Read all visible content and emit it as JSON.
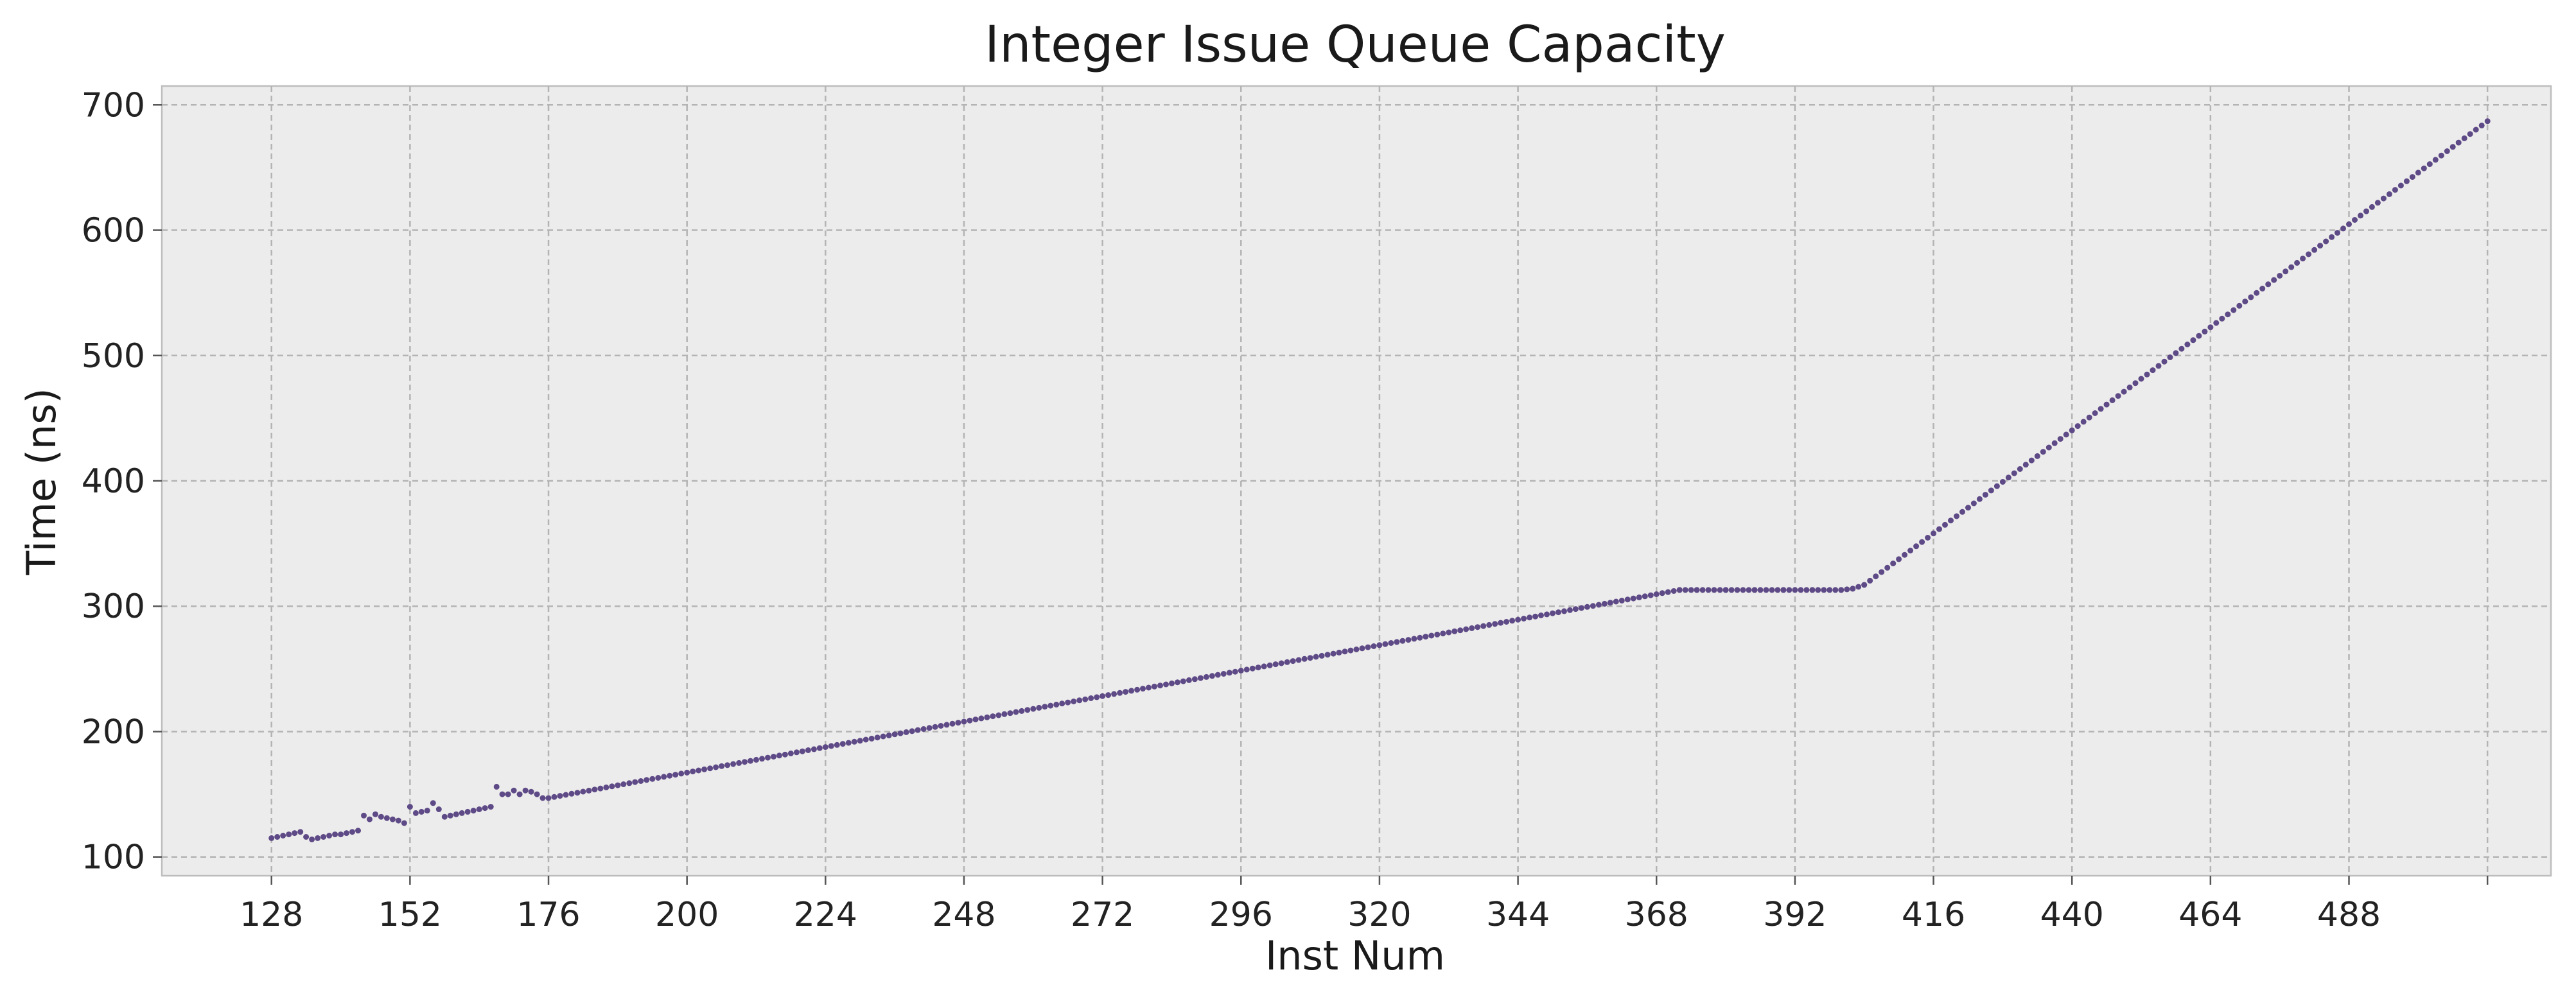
{
  "chart_data": {
    "type": "line",
    "title": "Integer Issue Queue Capacity",
    "xlabel": "Inst Num",
    "ylabel": "Time (ns)",
    "xlim": [
      109,
      523
    ],
    "ylim": [
      85,
      715
    ],
    "x_ticks": [
      128,
      152,
      176,
      200,
      224,
      248,
      272,
      296,
      320,
      344,
      368,
      392,
      416,
      440,
      464,
      488,
      512
    ],
    "x_tick_labels": [
      "128",
      "152",
      "176",
      "200",
      "224",
      "248",
      "272",
      "296",
      "320",
      "344",
      "368",
      "392",
      "416",
      "440",
      "464",
      "488",
      ""
    ],
    "y_ticks": [
      100,
      200,
      300,
      400,
      500,
      600,
      700
    ],
    "y_tick_labels": [
      "100",
      "200",
      "300",
      "400",
      "500",
      "600",
      "700"
    ],
    "grid": true,
    "legend": "none",
    "series_color": "#5e4a86",
    "series": [
      {
        "x": [
          128,
          129,
          130,
          131,
          132,
          133,
          134,
          135,
          136,
          137,
          138,
          139,
          140,
          141,
          142,
          143,
          144,
          145,
          146,
          147,
          148,
          149,
          150,
          151,
          152,
          153,
          154,
          155,
          156,
          157,
          158,
          159,
          160,
          161,
          162,
          163,
          164,
          165,
          166,
          167,
          168,
          169,
          170,
          171,
          172,
          173,
          174,
          175,
          176
        ],
        "y": [
          115,
          116,
          117,
          118,
          119,
          120,
          116,
          114,
          115,
          116,
          117,
          118,
          118,
          119,
          120,
          121,
          133,
          130,
          134,
          132,
          131,
          130,
          129,
          127,
          140,
          135,
          136,
          137,
          143,
          138,
          132,
          133,
          134,
          135,
          136,
          137,
          138,
          139,
          140,
          156,
          150,
          150,
          153,
          150,
          153,
          152,
          150,
          147,
          147
        ]
      },
      {
        "x": [
          176,
          372,
          375,
          380,
          385,
          390,
          395,
          400,
          402,
          404,
          512
        ],
        "y": [
          147,
          313,
          313,
          313,
          313,
          313,
          313,
          313,
          314,
          317,
          687
        ]
      }
    ]
  }
}
